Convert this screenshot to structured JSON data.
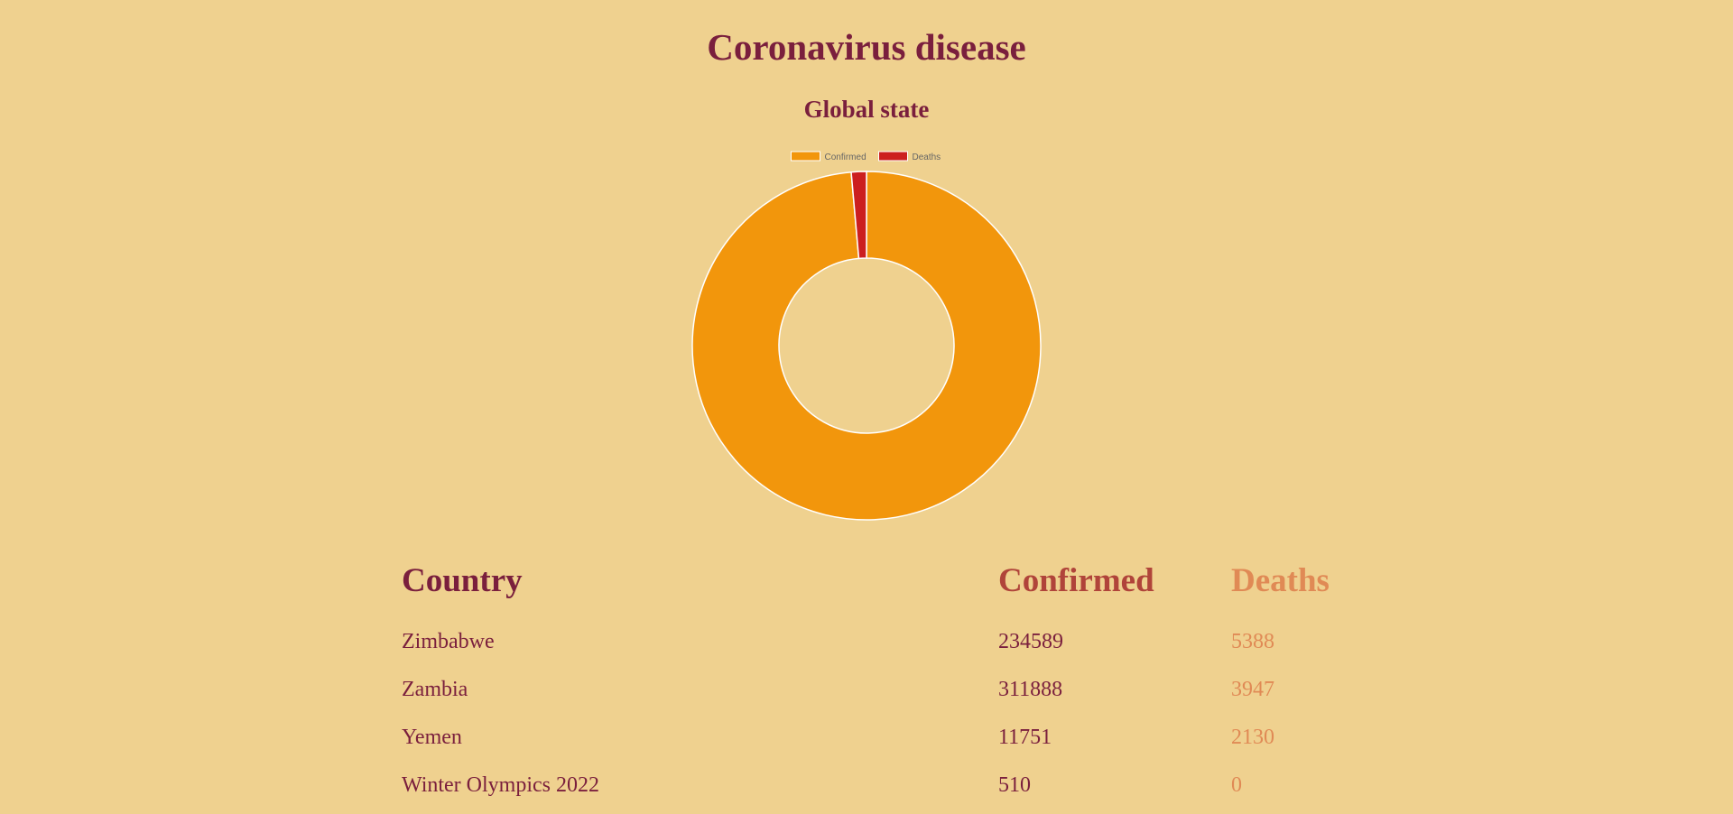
{
  "page": {
    "title": "Coronavirus disease",
    "subtitle": "Global state"
  },
  "chart_data": {
    "type": "pie",
    "style": "doughnut",
    "labels": [
      "Confirmed",
      "Deaths"
    ],
    "values": [
      98.6,
      1.4
    ],
    "value_unit": "approximate share of total (%)",
    "colors": [
      "#f2960c",
      "#cc1f1f"
    ],
    "legend": "top",
    "border_color": "#ffffff"
  },
  "table": {
    "headers": {
      "country": "Country",
      "confirmed": "Confirmed",
      "deaths": "Deaths"
    },
    "rows": [
      {
        "country": "Zimbabwe",
        "confirmed": "234589",
        "deaths": "5388"
      },
      {
        "country": "Zambia",
        "confirmed": "311888",
        "deaths": "3947"
      },
      {
        "country": "Yemen",
        "confirmed": "11751",
        "deaths": "2130"
      },
      {
        "country": "Winter Olympics 2022",
        "confirmed": "510",
        "deaths": "0"
      }
    ]
  },
  "colors": {
    "background": "#efd18f",
    "primary_text": "#7a1f3d",
    "confirmed_header": "#b0443a",
    "deaths_text": "#e08a55"
  }
}
